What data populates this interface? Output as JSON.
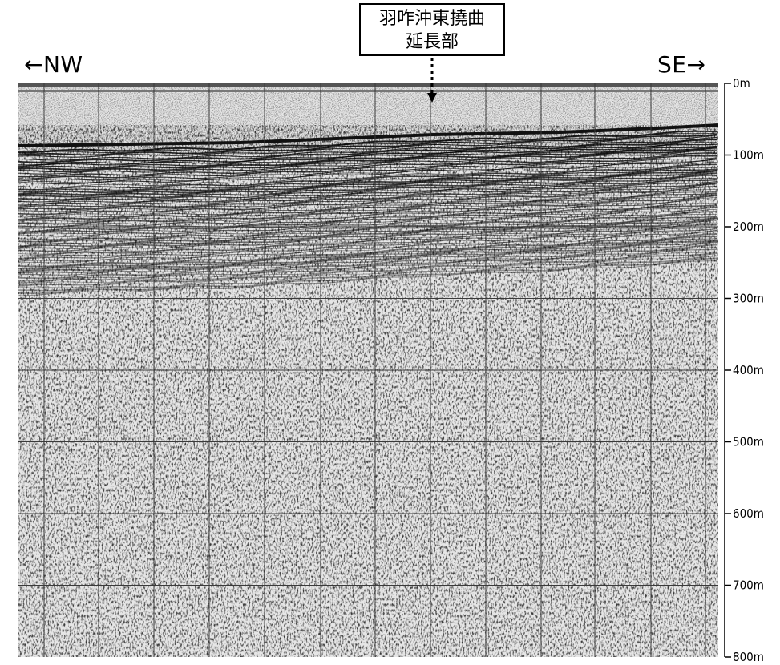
{
  "direction_labels": {
    "left": "←NW",
    "right": "SE→"
  },
  "callout": {
    "line1": "羽咋沖東撓曲",
    "line2": "延長部"
  },
  "depth_axis": {
    "unit": "m",
    "ticks": [
      "0m",
      "100m",
      "200m",
      "300m",
      "400m",
      "500m",
      "600m",
      "700m",
      "800m"
    ],
    "values": [
      0,
      100,
      200,
      300,
      400,
      500,
      600,
      700,
      800
    ]
  },
  "colors": {
    "ink": "#000000",
    "grid": "#3a3a3a",
    "background": "#ffffff"
  }
}
